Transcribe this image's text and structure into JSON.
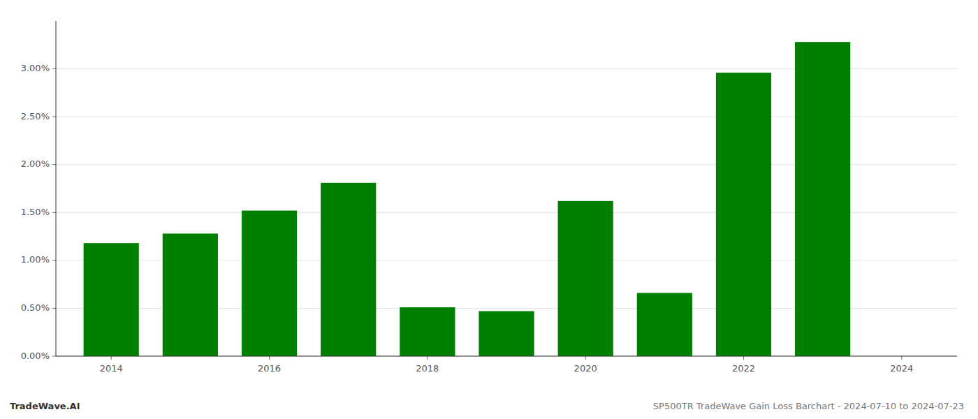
{
  "chart_data": {
    "type": "bar",
    "title": "SP500TR TradeWave Gain Loss Barchart - 2024-07-10 to 2024-07-23",
    "annotations": [
      "TradeWave.AI"
    ],
    "x": [
      2014,
      2015,
      2016,
      2017,
      2018,
      2019,
      2020,
      2021,
      2022,
      2023
    ],
    "values": [
      0.0118,
      0.0128,
      0.0152,
      0.0181,
      0.0051,
      0.0047,
      0.0162,
      0.0066,
      0.0296,
      0.0328
    ],
    "color": "#008000",
    "xlim": [
      2013.3,
      2024.7
    ],
    "xticks": [
      2014,
      2016,
      2018,
      2020,
      2022,
      2024
    ],
    "ylim": [
      0.0,
      0.035
    ],
    "yticks": [
      {
        "value": 0.0,
        "label": "0.00%"
      },
      {
        "value": 0.005,
        "label": "0.50%"
      },
      {
        "value": 0.01,
        "label": "1.00%"
      },
      {
        "value": 0.015,
        "label": "1.50%"
      },
      {
        "value": 0.02,
        "label": "2.00%"
      },
      {
        "value": 0.025,
        "label": "2.50%"
      },
      {
        "value": 0.03,
        "label": "3.00%"
      }
    ],
    "grid": true
  }
}
